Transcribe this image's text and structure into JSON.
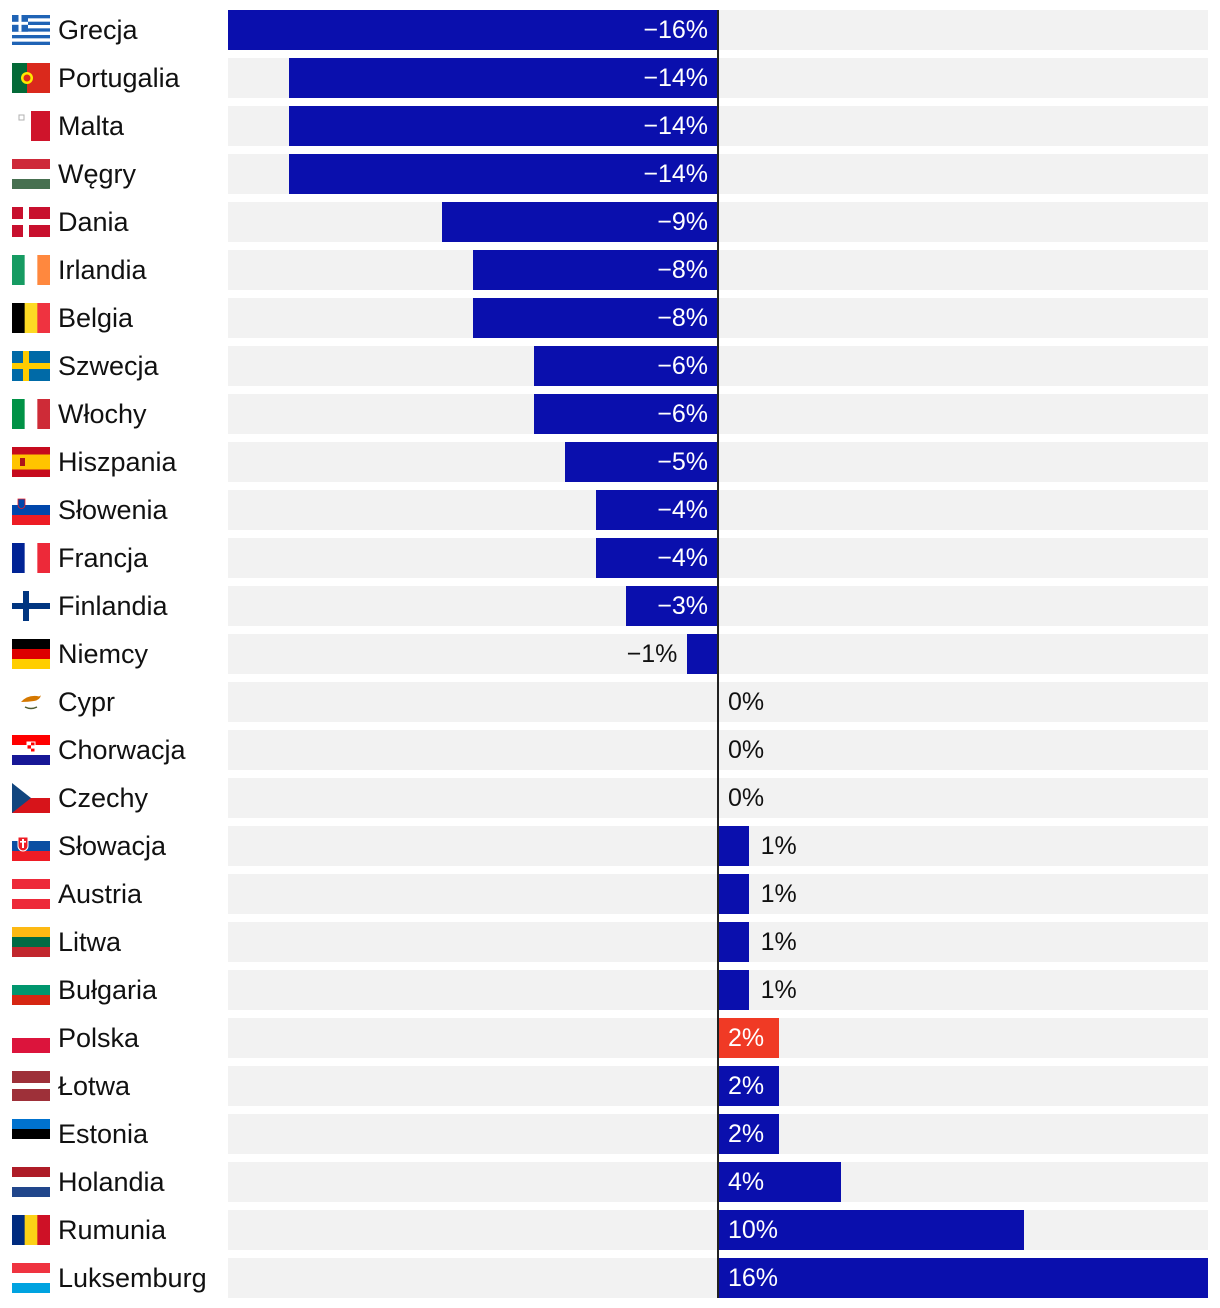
{
  "colors": {
    "bar": "#0a0fad",
    "highlight": "#f03a25",
    "track": "#f2f2f2",
    "axis": "#222222"
  },
  "chart_data": {
    "type": "bar",
    "orientation": "horizontal",
    "title": "",
    "xlabel": "",
    "ylabel": "",
    "xlim": [
      -16,
      16
    ],
    "highlight": "Polska",
    "categories": [
      "Grecja",
      "Portugalia",
      "Malta",
      "Węgry",
      "Dania",
      "Irlandia",
      "Belgia",
      "Szwecja",
      "Włochy",
      "Hiszpania",
      "Słowenia",
      "Francja",
      "Finlandia",
      "Niemcy",
      "Cypr",
      "Chorwacja",
      "Czechy",
      "Słowacja",
      "Austria",
      "Litwa",
      "Bułgaria",
      "Polska",
      "Łotwa",
      "Estonia",
      "Holandia",
      "Rumunia",
      "Luksemburg"
    ],
    "values": [
      -16,
      -14,
      -14,
      -14,
      -9,
      -8,
      -8,
      -6,
      -6,
      -5,
      -4,
      -4,
      -3,
      -1,
      0,
      0,
      0,
      1,
      1,
      1,
      1,
      2,
      2,
      2,
      4,
      10,
      16
    ],
    "labels": [
      "−16%",
      "−14%",
      "−14%",
      "−14%",
      "−9%",
      "−8%",
      "−8%",
      "−6%",
      "−6%",
      "−5%",
      "−4%",
      "−4%",
      "−3%",
      "−1%",
      "0%",
      "0%",
      "0%",
      "1%",
      "1%",
      "1%",
      "1%",
      "2%",
      "2%",
      "2%",
      "4%",
      "10%",
      "16%"
    ],
    "flags": [
      "greece-flag-icon",
      "portugal-flag-icon",
      "malta-flag-icon",
      "hungary-flag-icon",
      "denmark-flag-icon",
      "ireland-flag-icon",
      "belgium-flag-icon",
      "sweden-flag-icon",
      "italy-flag-icon",
      "spain-flag-icon",
      "slovenia-flag-icon",
      "france-flag-icon",
      "finland-flag-icon",
      "germany-flag-icon",
      "cyprus-flag-icon",
      "croatia-flag-icon",
      "czechia-flag-icon",
      "slovakia-flag-icon",
      "austria-flag-icon",
      "lithuania-flag-icon",
      "bulgaria-flag-icon",
      "poland-flag-icon",
      "latvia-flag-icon",
      "estonia-flag-icon",
      "netherlands-flag-icon",
      "romania-flag-icon",
      "luxembourg-flag-icon"
    ]
  }
}
